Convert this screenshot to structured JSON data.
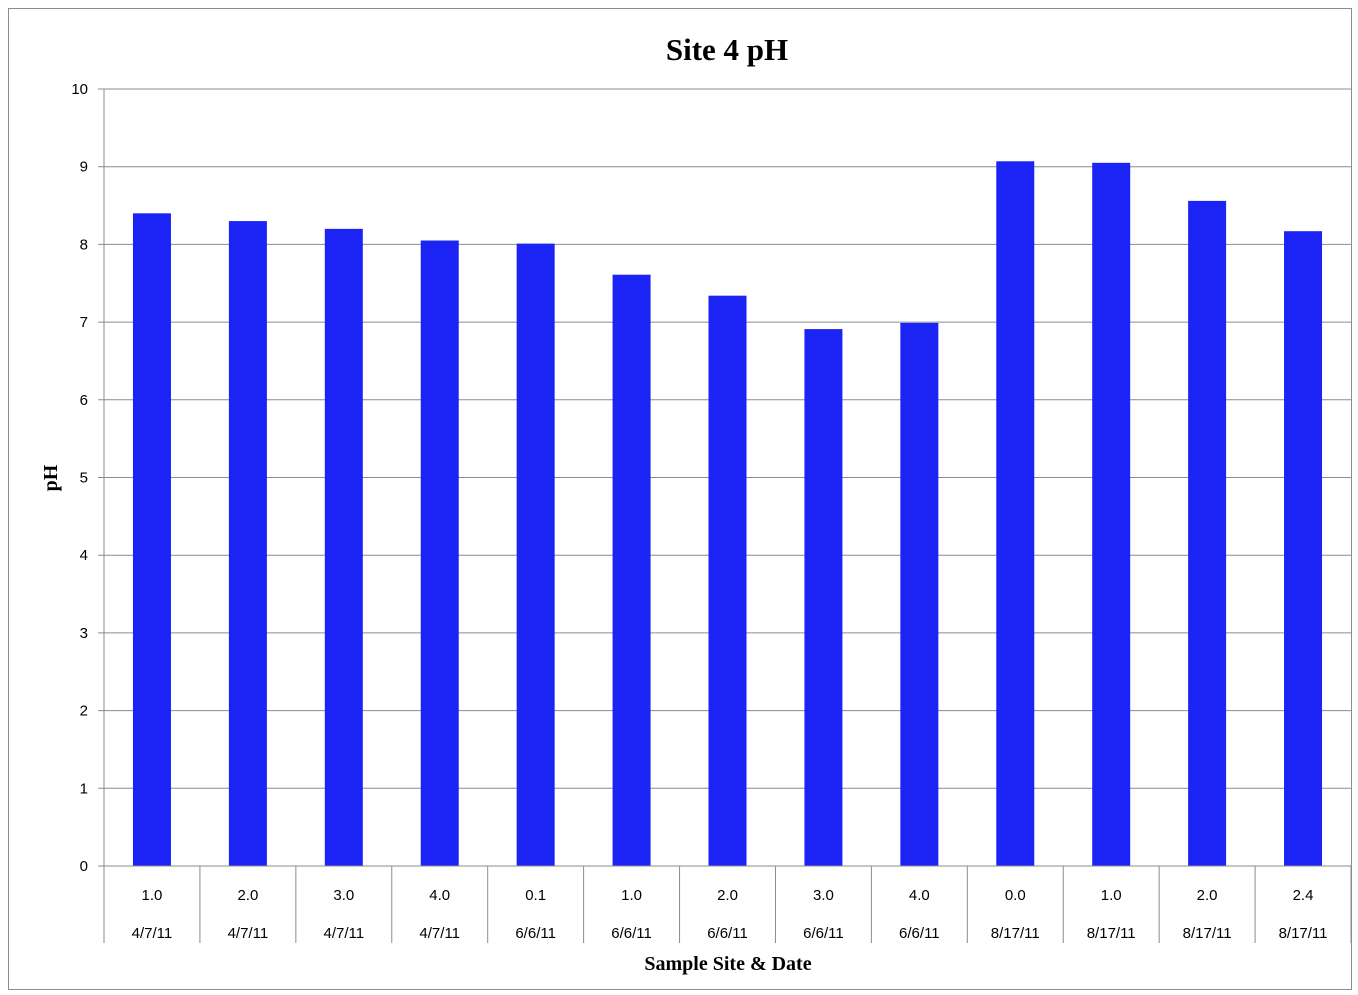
{
  "chart_data": {
    "type": "bar",
    "title": "Site 4 pH",
    "xlabel": "Sample Site & Date",
    "ylabel": "pH",
    "ylim": [
      0,
      10
    ],
    "yticks": [
      "0",
      "1",
      "2",
      "3",
      "4",
      "5",
      "6",
      "7",
      "8",
      "9",
      "10"
    ],
    "grid": true,
    "legend": "none",
    "bar_color": "#1b24f5",
    "categories": [
      {
        "site": "1.0",
        "date": "4/7/11"
      },
      {
        "site": "2.0",
        "date": "4/7/11"
      },
      {
        "site": "3.0",
        "date": "4/7/11"
      },
      {
        "site": "4.0",
        "date": "4/7/11"
      },
      {
        "site": "0.1",
        "date": "6/6/11"
      },
      {
        "site": "1.0",
        "date": "6/6/11"
      },
      {
        "site": "2.0",
        "date": "6/6/11"
      },
      {
        "site": "3.0",
        "date": "6/6/11"
      },
      {
        "site": "4.0",
        "date": "6/6/11"
      },
      {
        "site": "0.0",
        "date": "8/17/11"
      },
      {
        "site": "1.0",
        "date": "8/17/11"
      },
      {
        "site": "2.0",
        "date": "8/17/11"
      },
      {
        "site": "2.4",
        "date": "8/17/11"
      }
    ],
    "values": [
      8.4,
      8.3,
      8.2,
      8.05,
      8.01,
      7.61,
      7.34,
      6.91,
      6.99,
      9.07,
      9.05,
      8.56,
      8.17
    ]
  }
}
